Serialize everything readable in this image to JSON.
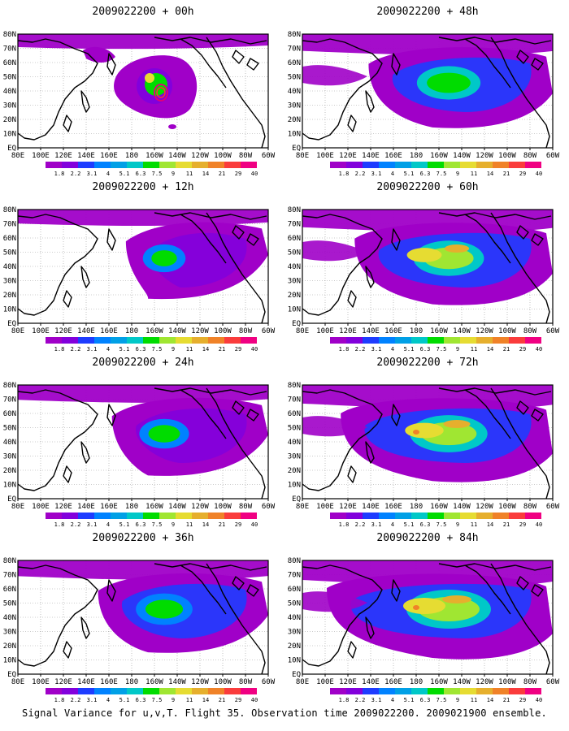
{
  "figure": {
    "caption": "Signal Variance for u,v,T. Flight 35. Observation time 2009022200. 2009021900 ensemble."
  },
  "axes": {
    "x_ticks": [
      "80E",
      "100E",
      "120E",
      "140E",
      "160E",
      "180",
      "160W",
      "140W",
      "120W",
      "100W",
      "80W",
      "60W"
    ],
    "y_ticks": [
      "80N",
      "70N",
      "60N",
      "50N",
      "40N",
      "30N",
      "20N",
      "10N",
      "EQ"
    ]
  },
  "colorbar": {
    "labels": [
      "1.8",
      "2.2",
      "3.1",
      "4",
      "5.1",
      "6.3",
      "7.5",
      "9",
      "11",
      "14",
      "21",
      "29",
      "40"
    ],
    "colors": [
      "#a000c8",
      "#8200dc",
      "#1e3cff",
      "#0082ff",
      "#00a0e6",
      "#00c8c8",
      "#00dc00",
      "#a0e632",
      "#e6dc32",
      "#e6af2d",
      "#f08228",
      "#fa3c3c",
      "#f00082"
    ]
  },
  "land_color": "#ffffff",
  "panels": [
    {
      "id": "p00",
      "title": "2009022200 + 00h",
      "lead_hours": 0
    },
    {
      "id": "p48",
      "title": "2009022200 + 48h",
      "lead_hours": 48
    },
    {
      "id": "p12",
      "title": "2009022200 + 12h",
      "lead_hours": 12
    },
    {
      "id": "p60",
      "title": "2009022200 + 60h",
      "lead_hours": 60
    },
    {
      "id": "p24",
      "title": "2009022200 + 24h",
      "lead_hours": 24
    },
    {
      "id": "p72",
      "title": "2009022200 + 72h",
      "lead_hours": 72
    },
    {
      "id": "p36",
      "title": "2009022200 + 36h",
      "lead_hours": 36
    },
    {
      "id": "p84",
      "title": "2009022200 + 84h",
      "lead_hours": 84
    }
  ]
}
